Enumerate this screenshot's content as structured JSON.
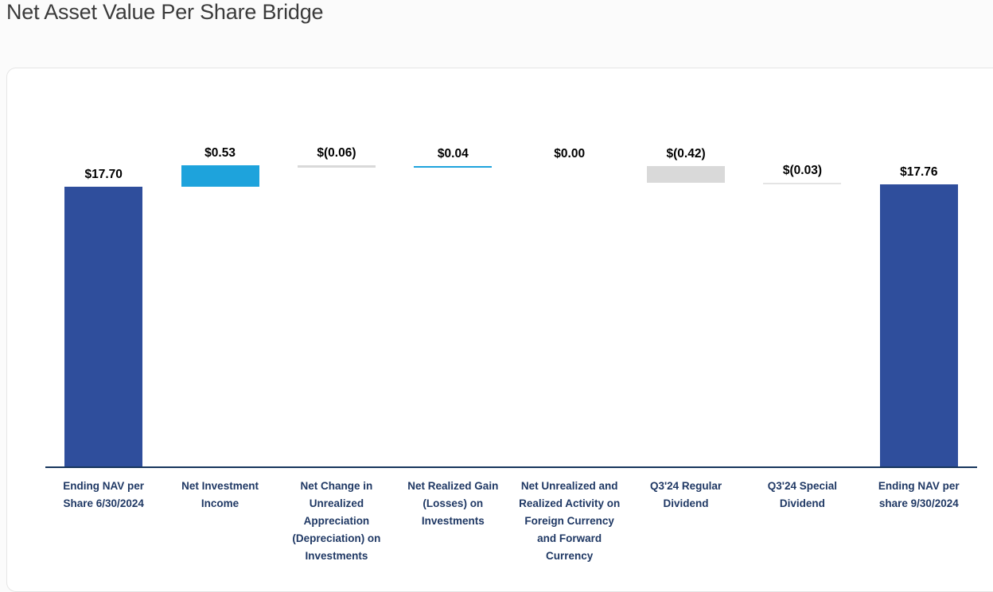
{
  "page": {
    "title": "Net Asset Value Per Share Bridge"
  },
  "colors": {
    "navy": "#2F4E9C",
    "lightBlue": "#1EA3DC",
    "gray": "#D9D9D9",
    "lightGray": "#E4E4E4",
    "axis": "#17365D",
    "categoryLabel": "#1F3864",
    "valueLabel": "#000000",
    "cardBorder": "#E5E5E5",
    "cardBackground": "#FFFFFF",
    "pageBackground": "#FBFBFB",
    "titleText": "#3B3B3B"
  },
  "chart_data": {
    "type": "bar",
    "subtype": "waterfall",
    "title": "Net Asset Value Per Share Bridge",
    "xlabel": "",
    "ylabel": "",
    "legend": "none",
    "gridlines": false,
    "axis_min": 10.76,
    "ylim": [
      10.76,
      18.6
    ],
    "categories": [
      "Ending NAV per\nShare 6/30/2024",
      "Net Investment\nIncome",
      "Net Change in\nUnrealized\nAppreciation\n(Depreciation) on\nInvestments",
      "Net Realized Gain\n(Losses) on\nInvestments",
      "Net Unrealized and\nRealized Activity on\nForeign Currency\nand Forward\nCurrency",
      "Q3'24 Regular\nDividend",
      "Q3'24 Special\nDividend",
      "Ending NAV per\nshare 9/30/2024"
    ],
    "values": [
      17.7,
      0.53,
      -0.06,
      0.04,
      0.0,
      -0.42,
      -0.03,
      17.76
    ],
    "value_labels": [
      "$17.70",
      "$0.53",
      "$(0.06)",
      "$0.04",
      "$0.00",
      "$(0.42)",
      "$(0.03)",
      "$17.76"
    ],
    "bar_roles": [
      "total",
      "delta",
      "delta",
      "delta",
      "delta",
      "delta",
      "delta",
      "total"
    ],
    "bar_color_keys": [
      "navy",
      "lightBlue",
      "gray",
      "lightBlue",
      "none",
      "gray",
      "lightGray",
      "navy"
    ]
  }
}
